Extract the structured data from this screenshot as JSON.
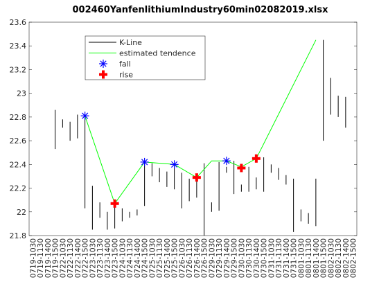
{
  "chart_data": {
    "type": "kline",
    "title": "002460YanfenlithiumIndustry60min02082019.xlsx",
    "categories": [
      "0719-1030",
      "0719-1130",
      "0719-1400",
      "0719-1500",
      "0722-1030",
      "0722-1130",
      "0722-1400",
      "0722-1500",
      "0723-1030",
      "0723-1130",
      "0723-1400",
      "0723-1500",
      "0724-1030",
      "0724-1130",
      "0724-1400",
      "0724-1500",
      "0725-1030",
      "0725-1130",
      "0725-1400",
      "0725-1500",
      "0726-1030",
      "0726-1130",
      "0726-1400",
      "0726-1500",
      "0729-1030",
      "0729-1130",
      "0729-1400",
      "0729-1500",
      "0730-1030",
      "0730-1130",
      "0730-1400",
      "0730-1500",
      "0731-1030",
      "0731-1130",
      "0731-1400",
      "0731-1500",
      "0801-1030",
      "0801-1130",
      "0801-1400",
      "0801-1500",
      "0802-1030",
      "0802-1130",
      "0802-1400",
      "0802-1500"
    ],
    "series": [
      {
        "name": "K-Line",
        "color": "#000000",
        "high": [
          null,
          null,
          null,
          22.86,
          22.78,
          22.76,
          22.82,
          22.81,
          22.22,
          22.08,
          22.0,
          22.09,
          22.03,
          22.0,
          22.02,
          22.42,
          22.41,
          22.37,
          22.34,
          22.4,
          22.33,
          22.28,
          22.29,
          22.41,
          22.08,
          22.42,
          22.38,
          22.43,
          22.23,
          22.38,
          22.29,
          22.46,
          22.4,
          22.37,
          22.31,
          22.28,
          22.02,
          21.99,
          22.28,
          23.45,
          23.13,
          22.98,
          22.97,
          null
        ],
        "low": [
          null,
          null,
          null,
          22.53,
          22.71,
          22.6,
          22.62,
          22.03,
          21.85,
          21.95,
          21.85,
          21.86,
          21.92,
          21.95,
          21.97,
          22.05,
          22.3,
          22.25,
          22.21,
          22.19,
          22.03,
          22.09,
          22.12,
          21.8,
          22.0,
          22.01,
          22.33,
          22.15,
          22.17,
          22.17,
          22.19,
          22.17,
          22.33,
          22.27,
          22.23,
          21.83,
          21.92,
          21.9,
          21.88,
          22.6,
          22.82,
          22.8,
          22.71,
          null
        ]
      },
      {
        "name": "estimated tendence",
        "color": "#00ff00",
        "x": [
          "0722-1500",
          "0723-1500",
          "0724-1500",
          "0725-1500",
          "0726-1400",
          "0729-1030",
          "0729-1400",
          "0730-1030",
          "0730-1400",
          "0801-1400"
        ],
        "values": [
          22.81,
          22.07,
          22.42,
          22.4,
          22.29,
          22.43,
          22.43,
          22.38,
          22.45,
          23.45
        ]
      },
      {
        "name": "fall",
        "color": "#0000ff",
        "marker": "asterisk",
        "x": [
          "0722-1500",
          "0724-1500",
          "0725-1500",
          "0729-1400"
        ],
        "values": [
          22.81,
          22.42,
          22.4,
          22.43
        ]
      },
      {
        "name": "rise",
        "color": "#ff0000",
        "marker": "plus",
        "x": [
          "0723-1500",
          "0726-1400",
          "0730-1030",
          "0730-1400"
        ],
        "values": [
          22.07,
          22.29,
          22.37,
          22.45
        ]
      }
    ],
    "ylim": [
      21.8,
      23.6
    ],
    "yticks": [
      21.8,
      22,
      22.2,
      22.4,
      22.6,
      22.8,
      23,
      23.2,
      23.4,
      23.6
    ],
    "legend": "upper-left"
  }
}
